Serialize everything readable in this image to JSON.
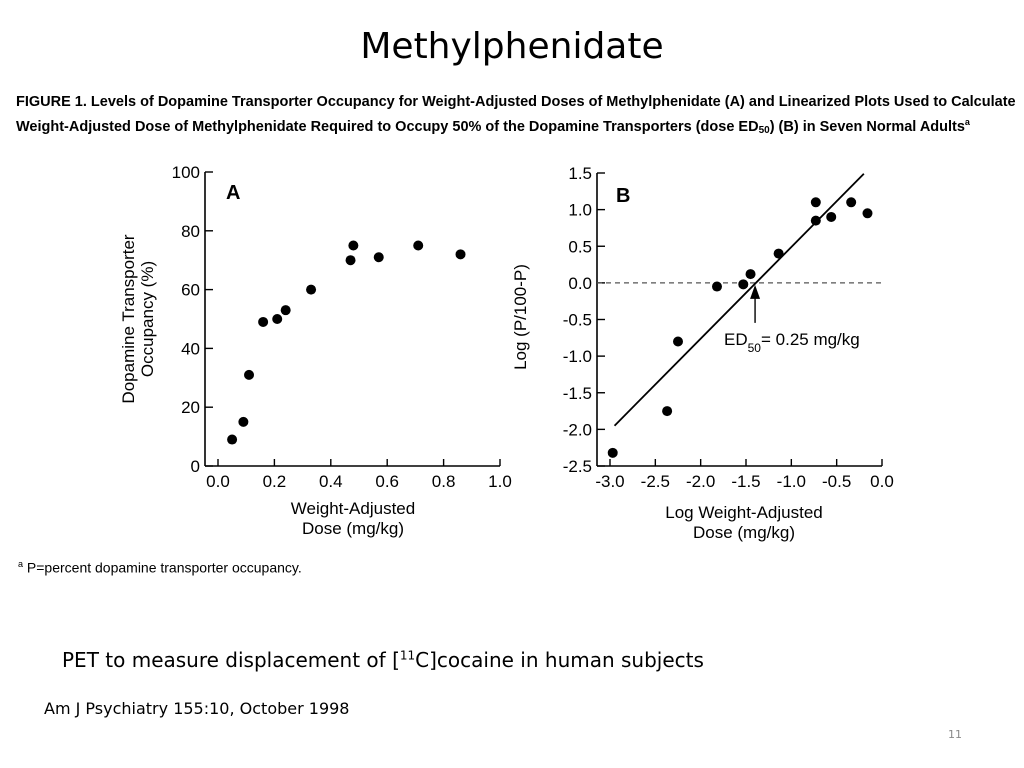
{
  "slide": {
    "title": "Methylphenidate",
    "pet_text_before": "PET to measure displacement of [",
    "pet_sup": "11",
    "pet_text_after": "C]cocaine in human subjects",
    "citation": "Am J Psychiatry 155:10, October 1998",
    "slide_number": "11"
  },
  "figure": {
    "caption_main": "FIGURE 1. Levels of Dopamine Transporter Occupancy for Weight-Adjusted Doses of Methylphenidate (A) and Linearized Plots Used to Calculate Weight-Adjusted Dose of Methylphenidate Required to Occupy 50% of the Dopamine Transporters (dose ED",
    "caption_sub": "50",
    "caption_end": ") (B) in Seven Normal Adults",
    "caption_sup": "a",
    "footnote_sup": "a",
    "footnote_text": "P=percent dopamine transporter occupancy."
  },
  "colors": {
    "ink": "#000000",
    "page": "#ffffff"
  },
  "chart_data": [
    {
      "type": "scatter",
      "panel_label": "A",
      "xlabel_lines": [
        "Weight-Adjusted",
        "Dose (mg/kg)"
      ],
      "ylabel_lines": [
        "Dopamine Transporter",
        "Occupancy (%)"
      ],
      "xlim": [
        0,
        1.0
      ],
      "ylim": [
        0,
        100
      ],
      "x_ticks": [
        0.0,
        0.2,
        0.4,
        0.6,
        0.8,
        1.0
      ],
      "x_tick_labels": [
        "0.0",
        "0.2",
        "0.4",
        "0.6",
        "0.8",
        "1.0"
      ],
      "y_ticks": [
        0,
        20,
        40,
        60,
        80,
        100
      ],
      "y_tick_labels": [
        "0",
        "20",
        "40",
        "60",
        "80",
        "100"
      ],
      "grid": false,
      "points": [
        {
          "x": 0.05,
          "y": 9
        },
        {
          "x": 0.09,
          "y": 15
        },
        {
          "x": 0.11,
          "y": 31
        },
        {
          "x": 0.16,
          "y": 49
        },
        {
          "x": 0.21,
          "y": 50
        },
        {
          "x": 0.24,
          "y": 53
        },
        {
          "x": 0.33,
          "y": 60
        },
        {
          "x": 0.47,
          "y": 70
        },
        {
          "x": 0.48,
          "y": 75
        },
        {
          "x": 0.57,
          "y": 71
        },
        {
          "x": 0.71,
          "y": 75
        },
        {
          "x": 0.86,
          "y": 72
        }
      ]
    },
    {
      "type": "scatter",
      "panel_label": "B",
      "xlabel_lines": [
        "Log Weight-Adjusted",
        "Dose (mg/kg)"
      ],
      "ylabel_lines": [
        "Log (P/100-P)"
      ],
      "xlim": [
        -3.0,
        0.0
      ],
      "ylim": [
        -2.5,
        1.5
      ],
      "x_ticks": [
        -3.0,
        -2.5,
        -2.0,
        -1.5,
        -1.0,
        -0.5,
        0.0
      ],
      "x_tick_labels": [
        "-3.0",
        "-2.5",
        "-2.0",
        "-1.5",
        "-1.0",
        "-0.5",
        "0.0"
      ],
      "y_ticks": [
        1.5,
        1.0,
        0.5,
        0.0,
        -0.5,
        -1.0,
        -1.5,
        -2.0,
        -2.5
      ],
      "y_tick_labels": [
        "1.5",
        "1.0",
        "0.5",
        "0.0",
        "-0.5",
        "-1.0",
        "-1.5",
        "-2.0",
        "-2.5"
      ],
      "grid": false,
      "reference_line_y": 0.0,
      "fit_line": [
        {
          "x": -2.95,
          "y": -1.95
        },
        {
          "x": -0.2,
          "y": 1.49
        }
      ],
      "annotation": {
        "text_before": "ED",
        "text_sub": "50",
        "text_after": "= 0.25 mg/kg",
        "arrow_x": -1.4,
        "arrow_y": 0.0
      },
      "points": [
        {
          "x": -2.97,
          "y": -2.32
        },
        {
          "x": -2.37,
          "y": -1.75
        },
        {
          "x": -2.25,
          "y": -0.8
        },
        {
          "x": -1.82,
          "y": -0.05
        },
        {
          "x": -1.53,
          "y": -0.02
        },
        {
          "x": -1.45,
          "y": 0.12
        },
        {
          "x": -1.14,
          "y": 0.4
        },
        {
          "x": -0.73,
          "y": 0.85
        },
        {
          "x": -0.73,
          "y": 1.1
        },
        {
          "x": -0.56,
          "y": 0.9
        },
        {
          "x": -0.34,
          "y": 1.1
        },
        {
          "x": -0.16,
          "y": 0.95
        }
      ]
    }
  ]
}
